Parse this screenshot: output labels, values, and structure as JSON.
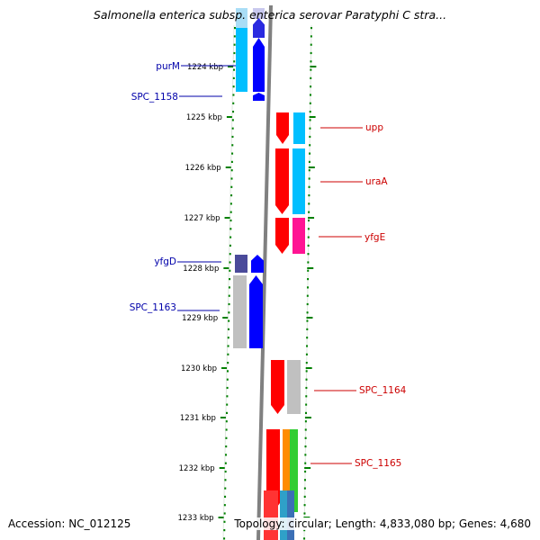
{
  "title": "Salmonella enterica subsp. enterica serovar Paratyphi C stra...",
  "accession_text": "Accession: NC_012125",
  "summary_text": "Topology: circular; Length: 4,833,080 bp; Genes: 4,680",
  "axis_unit": "kbp",
  "ticks": [
    {
      "label": "1224 kbp"
    },
    {
      "label": "1225 kbp"
    },
    {
      "label": "1226 kbp"
    },
    {
      "label": "1227 kbp"
    },
    {
      "label": "1228 kbp"
    },
    {
      "label": "1229 kbp"
    },
    {
      "label": "1230 kbp"
    },
    {
      "label": "1231 kbp"
    },
    {
      "label": "1232 kbp"
    },
    {
      "label": "1233 kbp"
    }
  ],
  "gene_labels": [
    {
      "name": "purM",
      "strand": "reverse",
      "color": "#0000aa"
    },
    {
      "name": "SPC_1158",
      "strand": "reverse",
      "color": "#0000aa"
    },
    {
      "name": "upp",
      "strand": "forward",
      "color": "#cc0000"
    },
    {
      "name": "uraA",
      "strand": "forward",
      "color": "#cc0000"
    },
    {
      "name": "yfgE",
      "strand": "forward",
      "color": "#cc0000"
    },
    {
      "name": "yfgD",
      "strand": "reverse",
      "color": "#0000aa"
    },
    {
      "name": "SPC_1163",
      "strand": "reverse",
      "color": "#0000aa"
    },
    {
      "name": "SPC_1164",
      "strand": "forward",
      "color": "#cc0000"
    },
    {
      "name": "SPC_1165",
      "strand": "forward",
      "color": "#cc0000"
    }
  ],
  "colors": {
    "forward_gene": "#ff0000",
    "reverse_gene": "#0000ff",
    "backbone": "#808080",
    "tick_marks": "#008000",
    "cog_cyan": "#00bfff",
    "cog_magenta": "#ff1493",
    "cog_gray": "#c0c0c0",
    "cog_slate": "#4a4a9a",
    "cog_orange": "#ff8c00",
    "cog_green": "#32cd32"
  }
}
